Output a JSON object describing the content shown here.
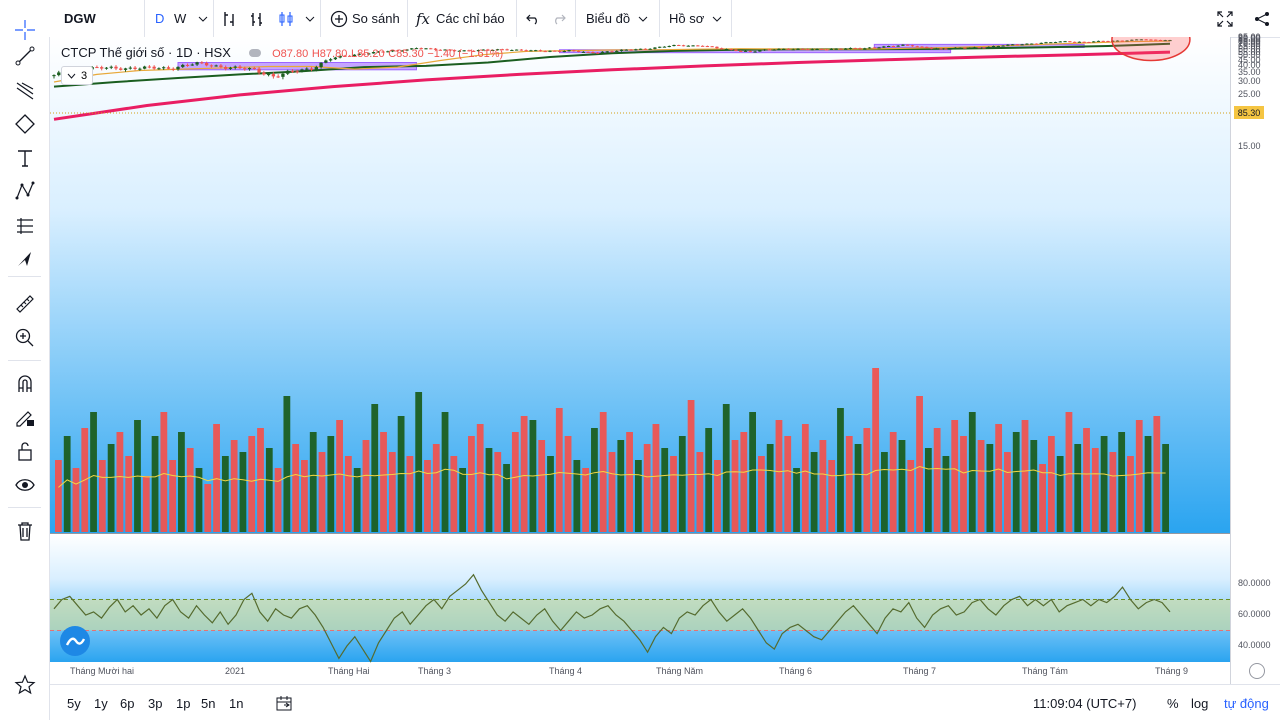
{
  "toolbar": {
    "symbol": "DGW",
    "interval_d": "D",
    "interval_w": "W",
    "compare_label": "So sánh",
    "indicators_label": "Các chỉ báo",
    "chart_menu_label": "Biểu đồ",
    "profile_menu_label": "Hồ sơ"
  },
  "legend": {
    "title": "CTCP Thế giới số · 1D · HSX",
    "open": "O87.80",
    "high": "H87.80",
    "low": "L85.20",
    "close": "C85.30",
    "change": "−1.40 (−1.61%)",
    "collapse_count": "3"
  },
  "price_tag": "85.30",
  "bottom": {
    "ranges": [
      "5y",
      "1y",
      "6p",
      "3p",
      "1p",
      "5n",
      "1n"
    ],
    "time": "11:09:04 (UTC+7)",
    "percent": "%",
    "log": "log",
    "auto": "tự động"
  },
  "colors": {
    "up": "#1b5e20",
    "down": "#ef5350",
    "ma_fast": "#e8a93a",
    "ma_mid": "#1b5e20",
    "ma_slow": "#e91e63",
    "zone": "#b388ff",
    "bg_top": "#ffffff",
    "bg_bottom": "#29a3f0"
  },
  "chart_data": [
    {
      "type": "candlestick",
      "title": "CTCP Thế giới số · 1D · HSX",
      "x_ticks": [
        "Tháng Mười hai",
        "2021",
        "Tháng Hai",
        "Tháng 3",
        "Tháng 4",
        "Tháng Năm",
        "Tháng 6",
        "Tháng 7",
        "Tháng Tám",
        "Tháng 9"
      ],
      "y_ticks": [
        15,
        20,
        25,
        30,
        35,
        40,
        45,
        50,
        55,
        60,
        65,
        70,
        75,
        80,
        85,
        90,
        95
      ],
      "ylim": [
        11.4,
        99.2
      ],
      "close_path": [
        {
          "x": 0,
          "y": 33
        },
        {
          "x": 6,
          "y": 38
        },
        {
          "x": 14,
          "y": 38.3
        },
        {
          "x": 24,
          "y": 38.2
        },
        {
          "x": 30,
          "y": 42
        },
        {
          "x": 36,
          "y": 39
        },
        {
          "x": 42,
          "y": 37
        },
        {
          "x": 46,
          "y": 33
        },
        {
          "x": 54,
          "y": 38
        },
        {
          "x": 58,
          "y": 47
        },
        {
          "x": 66,
          "y": 55
        },
        {
          "x": 72,
          "y": 58
        },
        {
          "x": 76,
          "y": 64
        },
        {
          "x": 80,
          "y": 60
        },
        {
          "x": 88,
          "y": 58
        },
        {
          "x": 94,
          "y": 61
        },
        {
          "x": 100,
          "y": 58
        },
        {
          "x": 108,
          "y": 58
        },
        {
          "x": 112,
          "y": 55
        },
        {
          "x": 118,
          "y": 58
        },
        {
          "x": 124,
          "y": 62
        },
        {
          "x": 130,
          "y": 69
        },
        {
          "x": 136,
          "y": 69
        },
        {
          "x": 140,
          "y": 61
        },
        {
          "x": 146,
          "y": 57
        },
        {
          "x": 150,
          "y": 60
        },
        {
          "x": 154,
          "y": 62
        },
        {
          "x": 160,
          "y": 60
        },
        {
          "x": 166,
          "y": 63
        },
        {
          "x": 170,
          "y": 62
        },
        {
          "x": 174,
          "y": 67
        },
        {
          "x": 178,
          "y": 70
        },
        {
          "x": 182,
          "y": 65
        },
        {
          "x": 186,
          "y": 62
        },
        {
          "x": 190,
          "y": 63
        },
        {
          "x": 196,
          "y": 66
        },
        {
          "x": 202,
          "y": 72
        },
        {
          "x": 208,
          "y": 77
        },
        {
          "x": 212,
          "y": 81
        },
        {
          "x": 216,
          "y": 79
        },
        {
          "x": 220,
          "y": 82
        },
        {
          "x": 224,
          "y": 84
        },
        {
          "x": 228,
          "y": 89
        },
        {
          "x": 230,
          "y": 86
        },
        {
          "x": 234,
          "y": 85.3
        }
      ],
      "ma_fast": [
        30,
        34,
        36.5,
        37.5,
        38.5,
        39.5,
        39.5,
        37.5,
        39,
        45,
        52,
        57,
        58.5,
        59.5,
        60,
        61,
        62,
        61.5,
        61,
        61.5,
        63,
        65,
        68,
        72,
        76,
        80,
        82.5
      ],
      "ma_mid": [
        28,
        30,
        32,
        34,
        36,
        39,
        40,
        43,
        49,
        54,
        58,
        60,
        61,
        61,
        61.5,
        63,
        65,
        68,
        73.5
      ],
      "ma_slow": [
        19,
        22,
        25,
        28,
        31,
        34,
        37,
        40,
        43,
        46,
        49,
        52,
        56
      ],
      "zones": [
        {
          "x_from": 26,
          "x_to": 76,
          "y_from": 37,
          "y_to": 43
        },
        {
          "x_from": 106,
          "x_to": 188,
          "y_from": 55,
          "y_to": 60
        },
        {
          "x_from": 172,
          "x_to": 216,
          "y_from": 64.5,
          "y_to": 72
        }
      ],
      "annotation": {
        "shape": "ellipse",
        "x": 230,
        "y": 88
      }
    },
    {
      "type": "bar",
      "title": "Volume",
      "series": [
        {
          "values": [
            18,
            24,
            16,
            26,
            30,
            18,
            22,
            25,
            19,
            28,
            14,
            24,
            30,
            18,
            25,
            21,
            16,
            12,
            27,
            19,
            23,
            20,
            24,
            26,
            21,
            16,
            34,
            22,
            18,
            25,
            20,
            24,
            28,
            19,
            16,
            23,
            32,
            25,
            20,
            29,
            19,
            35,
            18,
            22,
            30,
            19,
            16,
            24,
            27,
            21,
            20,
            17,
            25,
            29,
            28,
            23,
            19,
            31,
            24,
            18,
            16,
            26,
            30,
            20,
            23,
            25,
            18,
            22,
            27,
            21,
            19,
            24,
            33,
            20,
            26,
            18,
            32,
            23,
            25,
            30,
            19,
            22,
            28,
            24,
            16,
            27,
            20,
            23,
            18,
            31,
            24,
            22,
            26,
            41,
            20,
            25,
            23,
            18,
            34,
            21,
            26,
            19,
            28,
            24,
            30,
            23,
            22,
            27,
            20,
            25,
            28,
            23,
            17,
            24,
            19,
            30,
            22,
            26,
            21,
            24,
            20,
            25,
            19,
            28,
            24,
            29,
            22
          ]
        }
      ]
    },
    {
      "type": "line",
      "title": "RSI",
      "y_ticks": [
        "80.0000",
        "60.0000",
        "40.0000"
      ],
      "bands": [
        70,
        50
      ],
      "values": [
        64,
        70,
        72,
        66,
        60,
        62,
        58,
        65,
        70,
        62,
        66,
        60,
        64,
        58,
        66,
        70,
        62,
        58,
        66,
        60,
        55,
        62,
        54,
        60,
        70,
        74,
        62,
        56,
        64,
        60,
        58,
        64,
        66,
        60,
        52,
        42,
        32,
        40,
        46,
        38,
        30,
        42,
        50,
        58,
        62,
        54,
        60,
        66,
        70,
        64,
        72,
        76,
        80,
        86,
        76,
        68,
        60,
        56,
        62,
        58,
        54,
        60,
        64,
        56,
        50,
        56,
        62,
        58,
        60,
        64,
        66,
        60,
        56,
        50,
        44,
        36,
        46,
        52,
        48,
        58,
        62,
        60,
        66,
        70,
        62,
        56,
        60,
        64,
        58,
        50,
        42,
        38,
        48,
        52,
        54,
        50,
        46,
        44,
        50,
        56,
        62,
        66,
        60,
        54,
        48,
        58,
        64,
        62,
        68,
        58,
        52,
        60,
        64,
        66,
        60,
        62,
        68,
        70,
        64,
        60,
        66,
        70,
        72,
        66,
        70,
        66,
        70,
        62,
        66,
        68,
        70,
        66,
        70,
        68,
        72,
        78,
        70,
        64,
        68,
        70,
        68,
        62
      ]
    }
  ]
}
